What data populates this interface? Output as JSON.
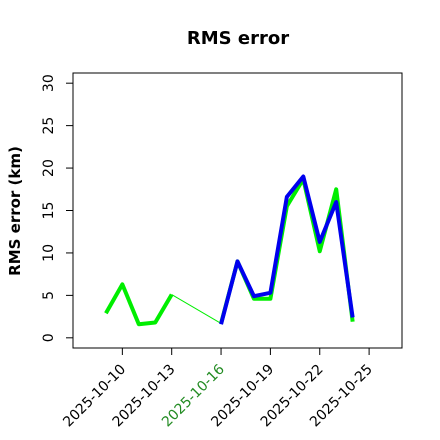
{
  "chart_data": {
    "type": "line",
    "title": "RMS error",
    "y_label": "RMS error (km)",
    "x": [
      "2025-10-09",
      "2025-10-10",
      "2025-10-11",
      "2025-10-12",
      "2025-10-13",
      "2025-10-14",
      "2025-10-15",
      "2025-10-16",
      "2025-10-17",
      "2025-10-18",
      "2025-10-19",
      "2025-10-20",
      "2025-10-21",
      "2025-10-22",
      "2025-10-23",
      "2025-10-24"
    ],
    "series": [
      {
        "color": "#00ee00",
        "values": [
          2.9,
          6.3,
          1.6,
          1.8,
          5.1,
          null,
          null,
          1.7,
          9.0,
          4.6,
          4.6,
          15.5,
          18.7,
          10.2,
          17.5,
          1.9
        ]
      },
      {
        "color": "#0000ee",
        "values": [
          null,
          null,
          null,
          null,
          null,
          null,
          null,
          1.6,
          9.0,
          4.9,
          5.3,
          16.6,
          19.0,
          11.3,
          16.0,
          2.4
        ]
      }
    ],
    "xlim": [
      "2025-10-07",
      "2025-10-27"
    ],
    "xticks": [
      "2025-10-10",
      "2025-10-13",
      "2025-10-16",
      "2025-10-19",
      "2025-10-22",
      "2025-10-25"
    ],
    "xtick_label_colors": [
      "#000000",
      "#000000",
      "#228b22",
      "#000000",
      "#000000",
      "#000000"
    ],
    "ylim": [
      -1.2,
      31.2
    ],
    "yticks": [
      0,
      5,
      10,
      15,
      20,
      25,
      30
    ]
  }
}
